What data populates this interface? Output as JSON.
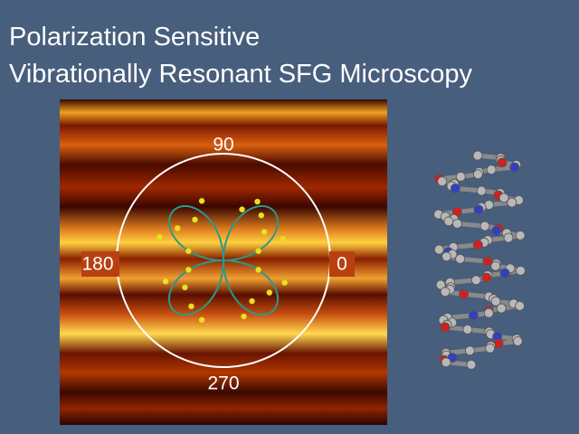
{
  "slide": {
    "title_lines": [
      "Polarization Sensitive",
      "Vibrationally Resonant SFG Microscopy"
    ],
    "polar_plot": {
      "angle_labels": {
        "top": "90",
        "left": "180",
        "right": "0",
        "bottom": "270"
      }
    }
  }
}
